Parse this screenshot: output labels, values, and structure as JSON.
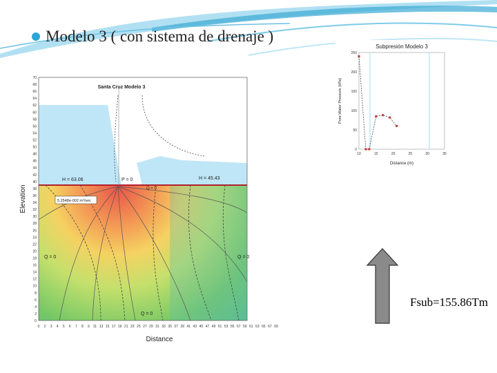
{
  "slide": {
    "title": "Modelo 3 ( con sistema de drenaje )",
    "fsub_label": "Fsub=155.86Tm"
  },
  "colors": {
    "bullet": "#2aa7d6",
    "water": "#bfe6f7",
    "arrow": "#8a8a8a"
  },
  "flow_plot": {
    "title": "Santa Cruz Modelo 3",
    "xlabel": "Distance",
    "ylabel": "Elevation",
    "x_ticks": [
      "0",
      "2",
      "3",
      "4",
      "5",
      "6",
      "7",
      "8",
      "9",
      "11",
      "13",
      "15",
      "17",
      "19",
      "21",
      "23",
      "25",
      "27",
      "29",
      "31",
      "33",
      "35",
      "37",
      "39",
      "41",
      "43",
      "45",
      "47",
      "49",
      "51",
      "53",
      "55",
      "57",
      "59",
      "61",
      "63",
      "65",
      "67",
      "69"
    ],
    "y_ticks": [
      "0",
      "2",
      "4",
      "6",
      "8",
      "10",
      "12",
      "14",
      "16",
      "18",
      "20",
      "22",
      "24",
      "26",
      "28",
      "30",
      "32",
      "34",
      "36",
      "38",
      "40",
      "42",
      "44",
      "46",
      "48",
      "50",
      "52",
      "54",
      "56",
      "58",
      "60",
      "62",
      "64",
      "66",
      "68",
      "70"
    ],
    "labels": {
      "h_left": "H = 63.06",
      "p_zero": "P = 0",
      "q_zero_top": "Q = 0",
      "h_right": "H = 45.43",
      "flux": "5.2548e-002 m³/sec",
      "q_zero_left": "Q = 0",
      "q_zero_right": "Q = 0",
      "q_zero_bottom": "Q = 0"
    }
  },
  "subpresion_plot": {
    "title": "Subpresión Modelo 3",
    "xlabel": "Distance (m)",
    "ylabel": "Pore-Water Pressure (kPa)",
    "y_ticks": [
      "0",
      "50",
      "100",
      "150",
      "200",
      "250"
    ],
    "x_ticks": [
      "10",
      "15",
      "20",
      "25",
      "30",
      "35"
    ],
    "chart_data": {
      "type": "line",
      "x": [
        10,
        12,
        13,
        15,
        17,
        19,
        21
      ],
      "y": [
        240,
        0,
        0,
        85,
        88,
        82,
        60
      ],
      "xlabel": "Distance (m)",
      "ylabel": "Pore-Water Pressure (kPa)",
      "title": "Subpresión Modelo 3"
    }
  }
}
